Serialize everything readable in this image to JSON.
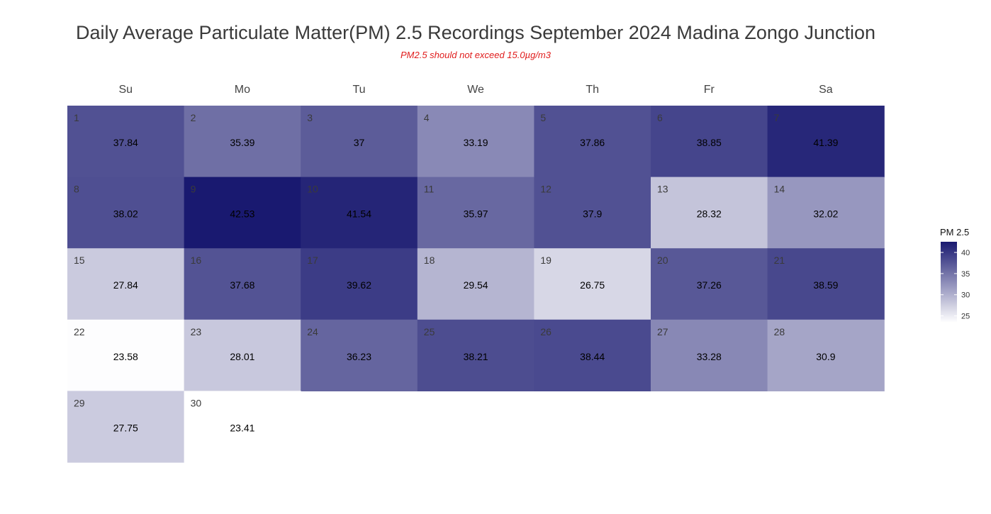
{
  "title": "Daily Average Particulate Matter(PM) 2.5 Recordings September 2024 Madina Zongo Junction",
  "subtitle": "PM2.5 should not exceed 15.0µg/m3",
  "colors": {
    "low": "#ffffff",
    "high": "#191970",
    "subtitle": "#e01c1c"
  },
  "chart_data": {
    "type": "heatmap",
    "weekdays": [
      "Su",
      "Mo",
      "Tu",
      "We",
      "Th",
      "Fr",
      "Sa"
    ],
    "days": [
      {
        "day": 1,
        "value": 37.84
      },
      {
        "day": 2,
        "value": 35.39
      },
      {
        "day": 3,
        "value": 37
      },
      {
        "day": 4,
        "value": 33.19
      },
      {
        "day": 5,
        "value": 37.86
      },
      {
        "day": 6,
        "value": 38.85
      },
      {
        "day": 7,
        "value": 41.39
      },
      {
        "day": 8,
        "value": 38.02
      },
      {
        "day": 9,
        "value": 42.53
      },
      {
        "day": 10,
        "value": 41.54
      },
      {
        "day": 11,
        "value": 35.97
      },
      {
        "day": 12,
        "value": 37.9
      },
      {
        "day": 13,
        "value": 28.32
      },
      {
        "day": 14,
        "value": 32.02
      },
      {
        "day": 15,
        "value": 27.84
      },
      {
        "day": 16,
        "value": 37.68
      },
      {
        "day": 17,
        "value": 39.62
      },
      {
        "day": 18,
        "value": 29.54
      },
      {
        "day": 19,
        "value": 26.75
      },
      {
        "day": 20,
        "value": 37.26
      },
      {
        "day": 21,
        "value": 38.59
      },
      {
        "day": 22,
        "value": 23.58
      },
      {
        "day": 23,
        "value": 28.01
      },
      {
        "day": 24,
        "value": 36.23
      },
      {
        "day": 25,
        "value": 38.21
      },
      {
        "day": 26,
        "value": 38.44
      },
      {
        "day": 27,
        "value": 33.28
      },
      {
        "day": 28,
        "value": 30.9
      },
      {
        "day": 29,
        "value": 27.75
      },
      {
        "day": 30,
        "value": 23.41
      }
    ],
    "first_weekday_index": 0,
    "legend": {
      "title": "PM 2.5",
      "range": [
        23.41,
        42.53
      ],
      "ticks": [
        25,
        30,
        35,
        40
      ]
    }
  }
}
